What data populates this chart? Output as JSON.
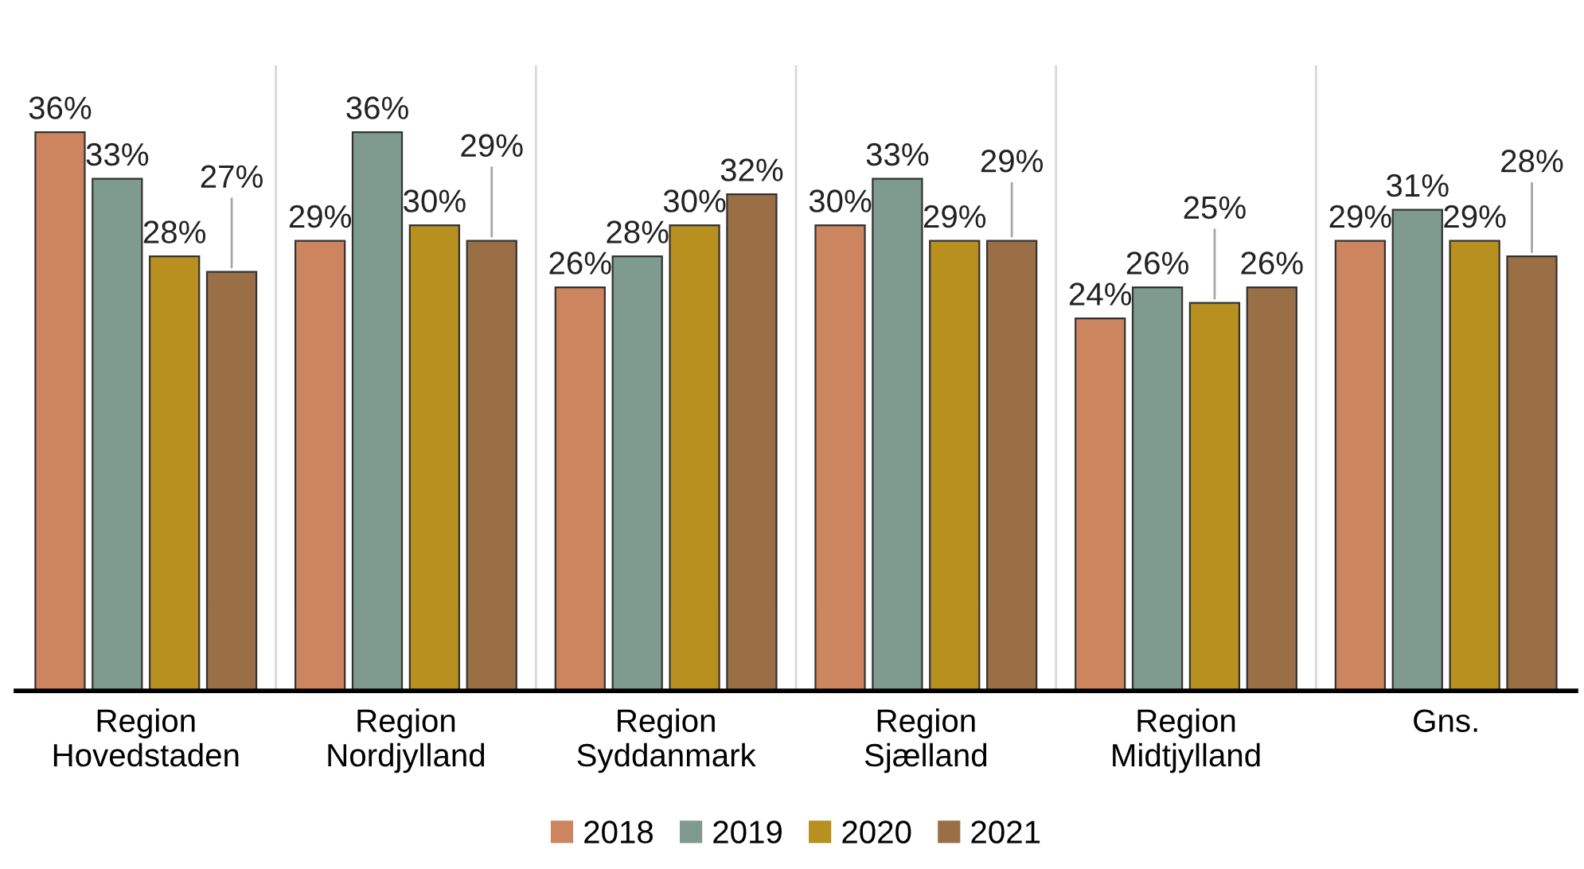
{
  "chart_data": {
    "type": "bar",
    "categories": [
      "Region\nHovedstaden",
      "Region\nNordjylland",
      "Region\nSyddanmark",
      "Region\nSjælland",
      "Region\nMidtjylland",
      "Gns."
    ],
    "series": [
      {
        "name": "2018",
        "color": "#cd8560",
        "values": [
          36,
          29,
          26,
          30,
          24,
          29
        ],
        "value_labels": [
          "36%",
          "29%",
          "26%",
          "30%",
          "24%",
          "29%"
        ]
      },
      {
        "name": "2019",
        "color": "#7f9a8f",
        "values": [
          33,
          36,
          28,
          33,
          26,
          31
        ],
        "value_labels": [
          "33%",
          "36%",
          "28%",
          "33%",
          "26%",
          "31%"
        ]
      },
      {
        "name": "2020",
        "color": "#b8901f",
        "values": [
          28,
          30,
          30,
          29,
          25,
          29
        ],
        "value_labels": [
          "28%",
          "30%",
          "30%",
          "29%",
          "25%",
          "29%"
        ]
      },
      {
        "name": "2021",
        "color": "#9b6f46",
        "values": [
          27,
          29,
          32,
          29,
          26,
          28
        ],
        "value_labels": [
          "27%",
          "29%",
          "32%",
          "29%",
          "26%",
          "28%"
        ]
      }
    ],
    "grid": "x",
    "legend": "bottom"
  }
}
